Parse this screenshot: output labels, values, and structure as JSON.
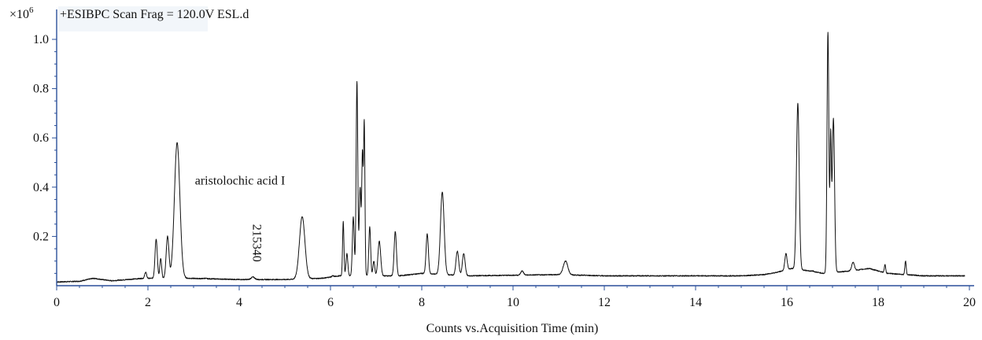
{
  "chart_data": {
    "type": "line",
    "title": "+ESIBPC Scan Frag = 120.0V ESL.d",
    "xlabel": "Counts vs.Acquisition Time (min)",
    "ylabel": "",
    "y_multiplier": {
      "base": "×10",
      "exp": "6"
    },
    "xlim": [
      0,
      20
    ],
    "ylim": [
      0,
      1.05
    ],
    "x_ticks": [
      0,
      2,
      4,
      6,
      8,
      10,
      12,
      14,
      16,
      18,
      20
    ],
    "x_tick_labels": [
      "0",
      "2",
      "4",
      "6",
      "8",
      "10",
      "12",
      "14",
      "16",
      "18",
      "20"
    ],
    "y_ticks": [
      0.2,
      0.4,
      0.6,
      0.8,
      1.0
    ],
    "y_tick_labels": [
      "0.2",
      "0.4",
      "0.6",
      "0.8",
      "1.0"
    ],
    "grid": false,
    "baseline": [
      [
        0.0,
        0.015
      ],
      [
        0.5,
        0.018
      ],
      [
        0.8,
        0.03
      ],
      [
        1.2,
        0.02
      ],
      [
        1.9,
        0.03
      ],
      [
        2.9,
        0.03
      ],
      [
        4.0,
        0.025
      ],
      [
        5.0,
        0.025
      ],
      [
        5.8,
        0.03
      ],
      [
        6.2,
        0.04
      ],
      [
        7.5,
        0.04
      ],
      [
        8.0,
        0.05
      ],
      [
        9.0,
        0.04
      ],
      [
        11.0,
        0.045
      ],
      [
        12.0,
        0.04
      ],
      [
        15.0,
        0.04
      ],
      [
        15.5,
        0.045
      ],
      [
        15.8,
        0.055
      ],
      [
        16.1,
        0.07
      ],
      [
        16.5,
        0.06
      ],
      [
        16.8,
        0.05
      ],
      [
        17.4,
        0.06
      ],
      [
        17.8,
        0.07
      ],
      [
        18.2,
        0.05
      ],
      [
        19.0,
        0.04
      ],
      [
        19.9,
        0.04
      ]
    ],
    "peaks": [
      {
        "x": 1.95,
        "y": 0.055,
        "w": 0.02
      },
      {
        "x": 2.18,
        "y": 0.19,
        "w": 0.025
      },
      {
        "x": 2.28,
        "y": 0.11,
        "w": 0.02
      },
      {
        "x": 2.43,
        "y": 0.2,
        "w": 0.03
      },
      {
        "x": 2.64,
        "y": 0.58,
        "w": 0.06
      },
      {
        "x": 3.25,
        "y": 0.03,
        "w": 0.03
      },
      {
        "x": 4.3,
        "y": 0.035,
        "w": 0.04
      },
      {
        "x": 5.38,
        "y": 0.28,
        "w": 0.06
      },
      {
        "x": 6.05,
        "y": 0.04,
        "w": 0.02
      },
      {
        "x": 6.28,
        "y": 0.26,
        "w": 0.015
      },
      {
        "x": 6.36,
        "y": 0.13,
        "w": 0.02
      },
      {
        "x": 6.5,
        "y": 0.28,
        "w": 0.02
      },
      {
        "x": 6.58,
        "y": 0.83,
        "w": 0.018
      },
      {
        "x": 6.65,
        "y": 0.4,
        "w": 0.02
      },
      {
        "x": 6.7,
        "y": 0.52,
        "w": 0.015
      },
      {
        "x": 6.74,
        "y": 0.66,
        "w": 0.015
      },
      {
        "x": 6.86,
        "y": 0.24,
        "w": 0.02
      },
      {
        "x": 6.95,
        "y": 0.1,
        "w": 0.02
      },
      {
        "x": 7.07,
        "y": 0.18,
        "w": 0.03
      },
      {
        "x": 7.42,
        "y": 0.22,
        "w": 0.025
      },
      {
        "x": 8.12,
        "y": 0.21,
        "w": 0.025
      },
      {
        "x": 8.45,
        "y": 0.38,
        "w": 0.04
      },
      {
        "x": 8.78,
        "y": 0.14,
        "w": 0.03
      },
      {
        "x": 8.92,
        "y": 0.13,
        "w": 0.03
      },
      {
        "x": 10.2,
        "y": 0.06,
        "w": 0.03
      },
      {
        "x": 11.15,
        "y": 0.1,
        "w": 0.05
      },
      {
        "x": 15.98,
        "y": 0.13,
        "w": 0.025
      },
      {
        "x": 16.24,
        "y": 0.74,
        "w": 0.03
      },
      {
        "x": 16.57,
        "y": 0.06,
        "w": 0.02
      },
      {
        "x": 16.9,
        "y": 1.03,
        "w": 0.02
      },
      {
        "x": 16.96,
        "y": 0.59,
        "w": 0.015
      },
      {
        "x": 17.02,
        "y": 0.68,
        "w": 0.025
      },
      {
        "x": 17.45,
        "y": 0.095,
        "w": 0.03
      },
      {
        "x": 18.15,
        "y": 0.085,
        "w": 0.015
      },
      {
        "x": 18.6,
        "y": 0.1,
        "w": 0.015
      }
    ],
    "annotations": [
      {
        "text": "aristolochic acid I",
        "x": 3.03,
        "y": 0.41,
        "rotate": 0
      },
      {
        "text": "215340",
        "x": 4.3,
        "y": 0.25,
        "rotate": 90
      }
    ]
  }
}
